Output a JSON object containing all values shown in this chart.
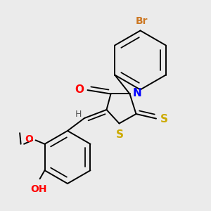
{
  "background_color": "#ebebeb",
  "bond_color": "#000000",
  "atom_colors": {
    "Br": "#cc7722",
    "O": "#ff0000",
    "N": "#0000ff",
    "S": "#ccaa00",
    "H": "#555555",
    "C": "#000000"
  },
  "font_size": 11,
  "lw": 1.4,
  "xlim": [
    0.0,
    1.0
  ],
  "ylim": [
    0.0,
    1.0
  ]
}
